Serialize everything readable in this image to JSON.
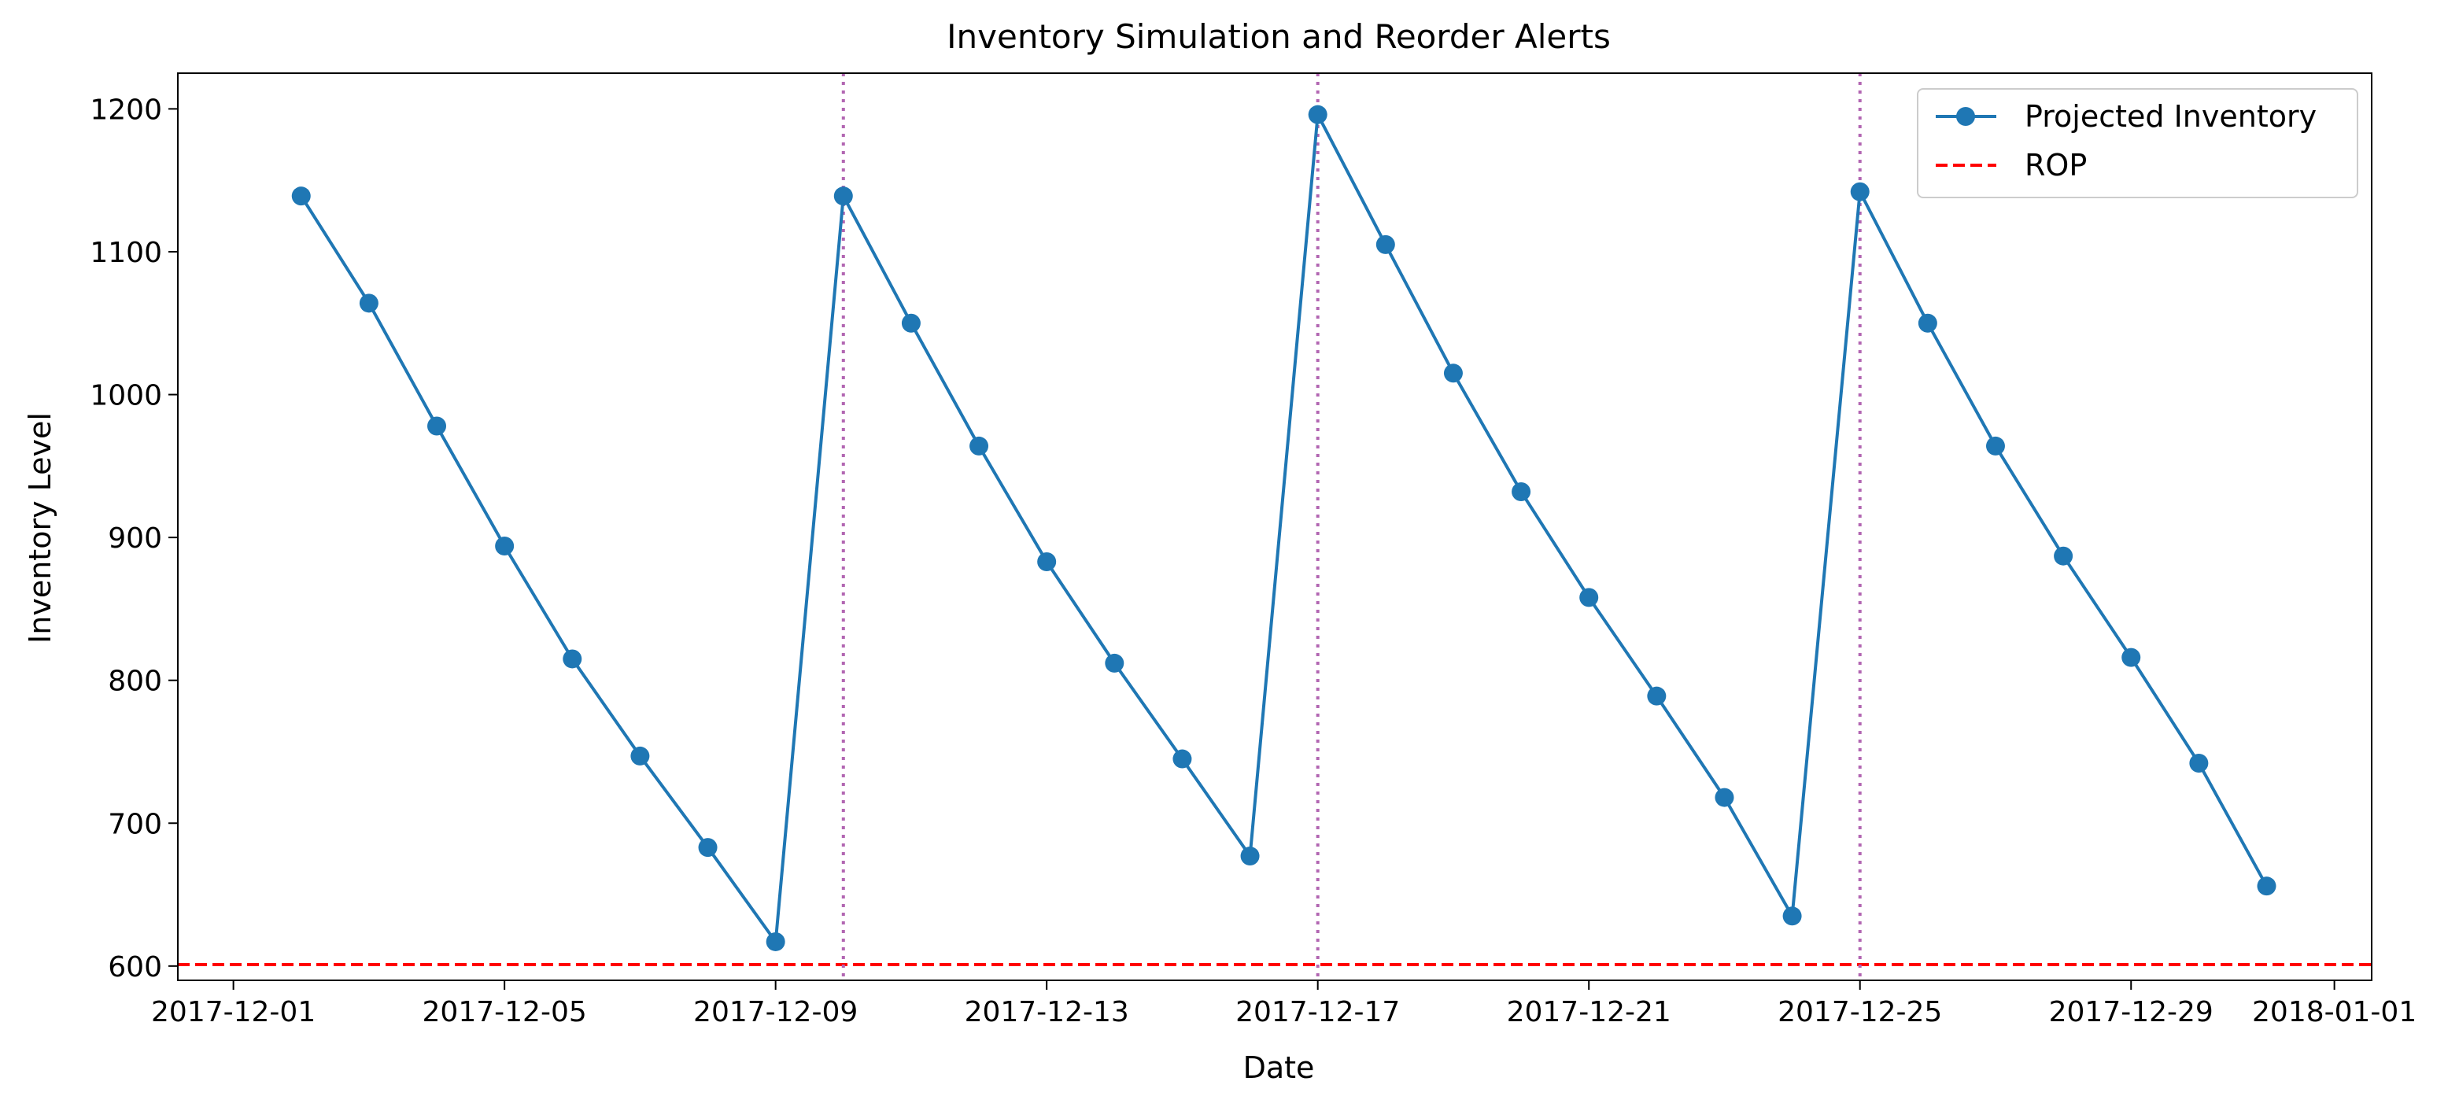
{
  "chart_data": {
    "type": "line",
    "title": "Inventory Simulation and Reorder Alerts",
    "xlabel": "Date",
    "ylabel": "Inventory Level",
    "x_type": "date",
    "xlim": [
      "2017-11-30",
      "2018-01-01"
    ],
    "ylim": [
      590,
      1225
    ],
    "xticks": [
      "2017-12-01",
      "2017-12-05",
      "2017-12-09",
      "2017-12-13",
      "2017-12-17",
      "2017-12-21",
      "2017-12-25",
      "2017-12-29",
      "2018-01-01"
    ],
    "yticks": [
      600,
      700,
      800,
      900,
      1000,
      1100,
      1200
    ],
    "grid": false,
    "legend_position": "top-right",
    "series": [
      {
        "name": "Projected Inventory",
        "color": "#1f77b4",
        "marker": "circle",
        "x": [
          "2017-12-02",
          "2017-12-03",
          "2017-12-04",
          "2017-12-05",
          "2017-12-06",
          "2017-12-07",
          "2017-12-08",
          "2017-12-09",
          "2017-12-10",
          "2017-12-11",
          "2017-12-12",
          "2017-12-13",
          "2017-12-14",
          "2017-12-15",
          "2017-12-16",
          "2017-12-17",
          "2017-12-18",
          "2017-12-19",
          "2017-12-20",
          "2017-12-21",
          "2017-12-22",
          "2017-12-23",
          "2017-12-24",
          "2017-12-25",
          "2017-12-26",
          "2017-12-27",
          "2017-12-28",
          "2017-12-29",
          "2017-12-30",
          "2017-12-31"
        ],
        "values": [
          1139,
          1064,
          978,
          894,
          815,
          747,
          683,
          617,
          1139,
          1050,
          964,
          883,
          812,
          745,
          677,
          1196,
          1105,
          1015,
          932,
          858,
          789,
          718,
          635,
          1142,
          1050,
          964,
          887,
          816,
          742,
          656
        ]
      }
    ],
    "reference_lines": [
      {
        "name": "ROP",
        "orientation": "horizontal",
        "value": 601,
        "color": "#ff0000",
        "style": "dashed"
      }
    ],
    "alert_lines": {
      "orientation": "vertical",
      "style": "dotted",
      "color": "#b266b2",
      "dates": [
        "2017-12-10",
        "2017-12-17",
        "2017-12-25"
      ]
    }
  }
}
